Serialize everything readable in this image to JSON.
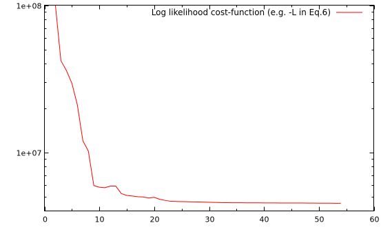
{
  "chart_data": {
    "type": "line",
    "title": "",
    "xlabel": "",
    "ylabel": "",
    "xlim": [
      0,
      60
    ],
    "ylim": [
      4000000,
      100000000
    ],
    "y_scale": "log",
    "x_ticks": [
      0,
      10,
      20,
      30,
      40,
      50,
      60
    ],
    "x_tick_labels": [
      "0",
      "10",
      "20",
      "30",
      "40",
      "50",
      "60"
    ],
    "y_ticks": [
      10000000,
      100000000
    ],
    "y_tick_labels": [
      "1e+07",
      "1e+08"
    ],
    "grid": false,
    "legend_position": "top-right",
    "series": [
      {
        "name": "Log likelihood cost-function (e.g. -L in Eq.6)",
        "color": "#ff0000",
        "x": [
          2,
          3,
          4,
          5,
          6,
          7,
          8,
          9,
          10,
          11,
          12,
          13,
          14,
          15,
          16,
          17,
          18,
          19,
          20,
          21,
          22,
          23,
          24,
          25,
          26,
          27,
          28,
          29,
          30,
          31,
          32,
          33,
          34,
          35,
          36,
          37,
          38,
          39,
          40,
          41,
          42,
          43,
          44,
          45,
          46,
          47,
          48,
          49,
          50,
          51,
          52,
          53,
          54
        ],
        "y": [
          100000000,
          42000000,
          36000000,
          29500000,
          21000000,
          12000000,
          10200000,
          5950000,
          5800000,
          5750000,
          5900000,
          5900000,
          5250000,
          5100000,
          5050000,
          5000000,
          4980000,
          4900000,
          4950000,
          4800000,
          4720000,
          4650000,
          4640000,
          4630000,
          4620000,
          4610000,
          4600000,
          4590000,
          4580000,
          4575000,
          4560000,
          4555000,
          4550000,
          4548000,
          4545000,
          4543000,
          4542000,
          4540000,
          4538000,
          4535000,
          4533000,
          4532000,
          4530000,
          4530000,
          4528000,
          4527000,
          4525000,
          4522000,
          4520000,
          4518000,
          4515000,
          4512000,
          4510000
        ]
      }
    ]
  }
}
